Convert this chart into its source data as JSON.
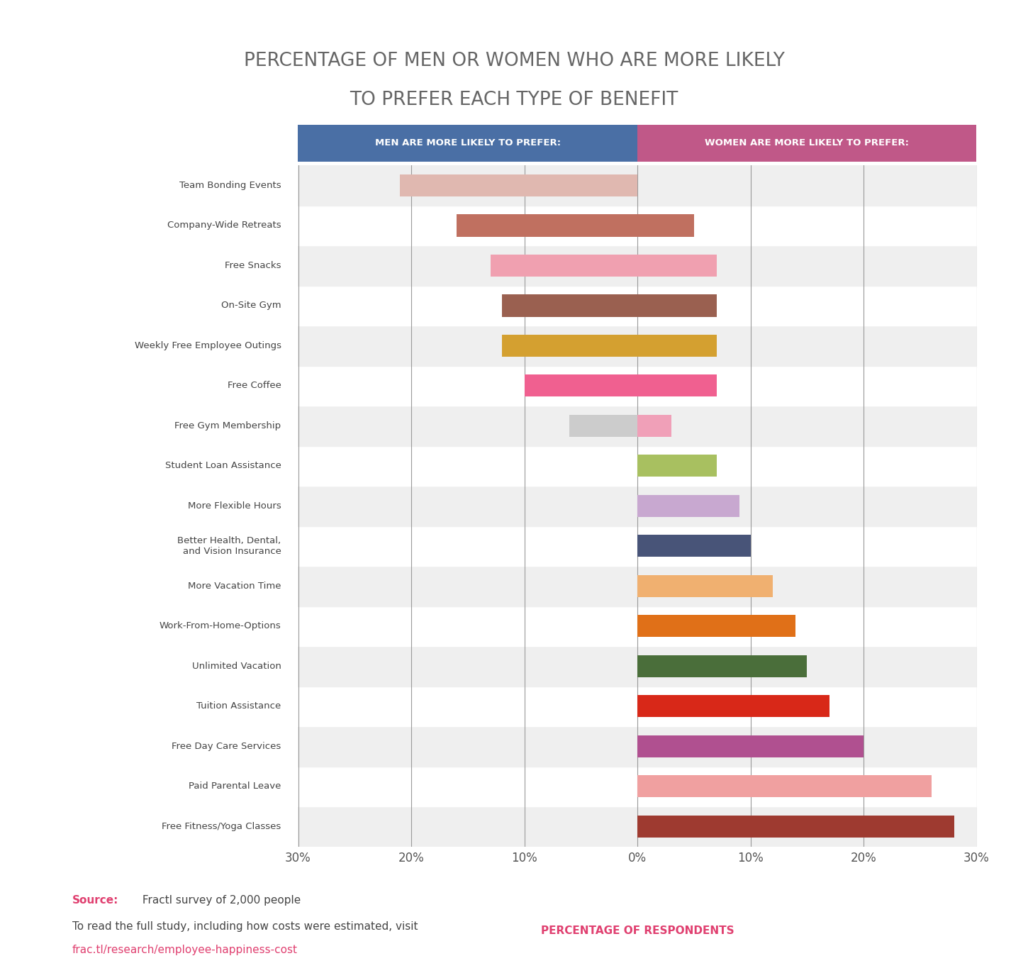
{
  "title_line1": "PERCENTAGE OF MEN OR WOMEN WHO ARE MORE LIKELY",
  "title_line2": "TO PREFER EACH TYPE OF BENEFIT",
  "xlabel": "PERCENTAGE OF RESPONDENTS",
  "men_header": "MEN ARE MORE LIKELY TO PREFER:",
  "women_header": "WOMEN ARE MORE LIKELY TO PREFER:",
  "source_label": "Source:",
  "source_detail": " Fractl survey of 2,000 people",
  "footer_text": "To read the full study, including how costs were estimated, visit",
  "footer_link": "frac.tl/research/employee-happiness-cost",
  "categories": [
    "Free Fitness/Yoga Classes",
    "Paid Parental Leave",
    "Free Day Care Services",
    "Tuition Assistance",
    "Unlimited Vacation",
    "Work-From-Home-Options",
    "More Vacation Time",
    "Better Health, Dental,\nand Vision Insurance",
    "More Flexible Hours",
    "Student Loan Assistance",
    "Free Gym Membership",
    "Free Coffee",
    "Weekly Free Employee Outings",
    "On-Site Gym",
    "Free Snacks",
    "Company-Wide Retreats",
    "Team Bonding Events"
  ],
  "men_values": [
    0,
    0,
    0,
    0,
    0,
    0,
    0,
    0,
    0,
    0,
    6,
    10,
    12,
    12,
    13,
    16,
    21
  ],
  "women_values": [
    28,
    26,
    20,
    17,
    15,
    14,
    12,
    10,
    9,
    7,
    3,
    7,
    7,
    7,
    7,
    5,
    0
  ],
  "men_bar_colors": [
    "#cccccc",
    "#cccccc",
    "#cccccc",
    "#cccccc",
    "#cccccc",
    "#cccccc",
    "#cccccc",
    "#cccccc",
    "#cccccc",
    "#cccccc",
    "#cccccc",
    "#f06090",
    "#d4a030",
    "#9a6050",
    "#f0a0b0",
    "#c07060",
    "#e0b8b0"
  ],
  "women_bar_colors": [
    "#9e3a30",
    "#f0a0a0",
    "#b05090",
    "#d82818",
    "#4a6e3a",
    "#e07018",
    "#f0b070",
    "#485478",
    "#c8a8d0",
    "#a8c060",
    "#f0a0b8",
    "#f06090",
    "#d4a030",
    "#9a6050",
    "#f0a0b0",
    "#c07060",
    "#cccccc"
  ],
  "men_header_color": "#4a6fa5",
  "women_header_color": "#c05888",
  "background_color": "#ffffff",
  "stripe_color": "#efefef",
  "title_color": "#666666",
  "xlabel_color": "#e04070",
  "axis_range": 30,
  "source_color": "#e04070",
  "footer_link_color": "#e04070"
}
